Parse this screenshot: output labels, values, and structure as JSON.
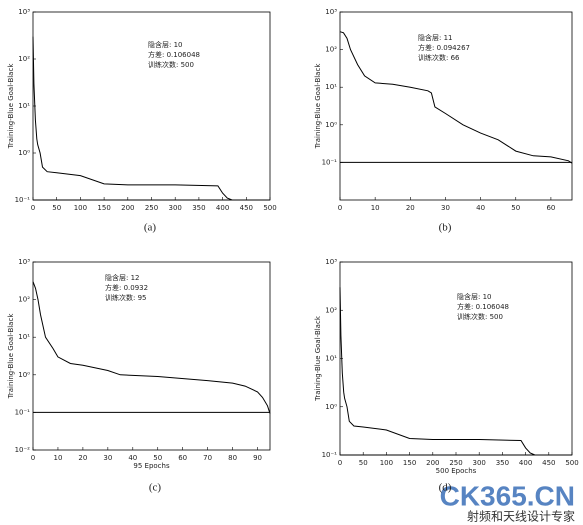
{
  "chart_data": [
    {
      "type": "line",
      "caption": "(a)",
      "ylabel": "Training-Blue  Goal-Black",
      "annotations": [
        "隐含层: 10",
        "方差: 0.106048",
        "训练次数: 500"
      ],
      "x": [
        0,
        2,
        5,
        8,
        10,
        15,
        20,
        30,
        50,
        100,
        150,
        200,
        300,
        390,
        400,
        410,
        420,
        450,
        500
      ],
      "values": [
        300,
        30,
        5,
        2,
        1.5,
        1,
        0.5,
        0.4,
        0.38,
        0.33,
        0.22,
        0.21,
        0.21,
        0.2,
        0.14,
        0.11,
        0.1,
        0.1,
        0.1
      ],
      "color": "#000000",
      "goal": 0.1,
      "yscale": "log",
      "xlim": [
        0,
        500
      ],
      "xticks": [
        0,
        50,
        100,
        150,
        200,
        250,
        300,
        350,
        400,
        450,
        500
      ],
      "ylim": [
        0.1,
        1000
      ],
      "yticks": [
        {
          "value": 0.1,
          "label": "10⁻¹"
        },
        {
          "value": 1,
          "label": "10⁰"
        },
        {
          "value": 10,
          "label": "10¹"
        },
        {
          "value": 100,
          "label": "10²"
        },
        {
          "value": 1000,
          "label": "10³"
        }
      ]
    },
    {
      "type": "line",
      "caption": "(b)",
      "ylabel": "Training-Blue  Goal-Black",
      "annotations": [
        "隐含层: 11",
        "方差: 0.094267",
        "训练次数: 66"
      ],
      "x": [
        0,
        1,
        2,
        3,
        5,
        7,
        10,
        15,
        20,
        25,
        26,
        27,
        30,
        35,
        40,
        45,
        50,
        55,
        60,
        65,
        66
      ],
      "values": [
        300,
        280,
        200,
        100,
        40,
        20,
        13,
        12,
        10,
        8,
        7,
        3,
        2,
        1,
        0.6,
        0.4,
        0.2,
        0.15,
        0.14,
        0.11,
        0.095
      ],
      "color": "#000000",
      "goal": 0.1,
      "yscale": "log",
      "xlim": [
        0,
        66
      ],
      "xticks": [
        0,
        10,
        20,
        30,
        40,
        50,
        60
      ],
      "ylim": [
        0.01,
        1000
      ],
      "yticks": [
        {
          "value": 0.1,
          "label": "10⁻¹"
        },
        {
          "value": 1,
          "label": "10⁰"
        },
        {
          "value": 10,
          "label": "10¹"
        },
        {
          "value": 100,
          "label": "10²"
        },
        {
          "value": 1000,
          "label": "10³"
        }
      ]
    },
    {
      "type": "line",
      "caption": "(c)",
      "ylabel": "Training-Blue  Goal-Black",
      "xlabel": "95 Epochs",
      "annotations": [
        "隐含层: 12",
        "方差: 0.0932",
        "训练次数: 95"
      ],
      "x": [
        0,
        1,
        2,
        3,
        5,
        8,
        10,
        15,
        20,
        30,
        35,
        50,
        70,
        80,
        85,
        90,
        92,
        94,
        95
      ],
      "values": [
        300,
        200,
        100,
        40,
        10,
        5,
        3,
        2,
        1.8,
        1.3,
        1,
        0.9,
        0.7,
        0.6,
        0.5,
        0.35,
        0.25,
        0.15,
        0.093
      ],
      "color": "#000000",
      "goal": 0.1,
      "yscale": "log",
      "xlim": [
        0,
        95
      ],
      "xticks": [
        0,
        10,
        20,
        30,
        40,
        50,
        60,
        70,
        80,
        90
      ],
      "ylim": [
        0.01,
        1000
      ],
      "yticks": [
        {
          "value": 0.01,
          "label": "10⁻²"
        },
        {
          "value": 0.1,
          "label": "10⁻¹"
        },
        {
          "value": 1,
          "label": "10⁰"
        },
        {
          "value": 10,
          "label": "10¹"
        },
        {
          "value": 100,
          "label": "10²"
        },
        {
          "value": 1000,
          "label": "10³"
        }
      ]
    },
    {
      "type": "line",
      "caption": "(d)",
      "ylabel": "Training-Blue  Goal-Black",
      "xlabel": "500 Epochs",
      "annotations": [
        "隐含层: 10",
        "方差: 0.106048",
        "训练次数: 500"
      ],
      "x": [
        0,
        2,
        5,
        8,
        10,
        15,
        20,
        30,
        50,
        100,
        150,
        200,
        300,
        390,
        400,
        410,
        420,
        450,
        500
      ],
      "values": [
        300,
        30,
        5,
        2,
        1.5,
        1,
        0.5,
        0.4,
        0.38,
        0.33,
        0.22,
        0.21,
        0.21,
        0.2,
        0.14,
        0.11,
        0.1,
        0.1,
        0.1
      ],
      "color": "#000000",
      "goal": 0.1,
      "yscale": "log",
      "xlim": [
        0,
        500
      ],
      "xticks": [
        0,
        50,
        100,
        150,
        200,
        250,
        300,
        350,
        400,
        450,
        500
      ],
      "ylim": [
        0.1,
        1000
      ],
      "yticks": [
        {
          "value": 0.1,
          "label": "10⁻¹"
        },
        {
          "value": 1,
          "label": "10⁰"
        },
        {
          "value": 10,
          "label": "10¹"
        },
        {
          "value": 100,
          "label": "10²"
        },
        {
          "value": 1000,
          "label": "10³"
        }
      ]
    }
  ],
  "watermark": {
    "logo": "CK365.CN",
    "slogan": "射频和天线设计专家"
  }
}
